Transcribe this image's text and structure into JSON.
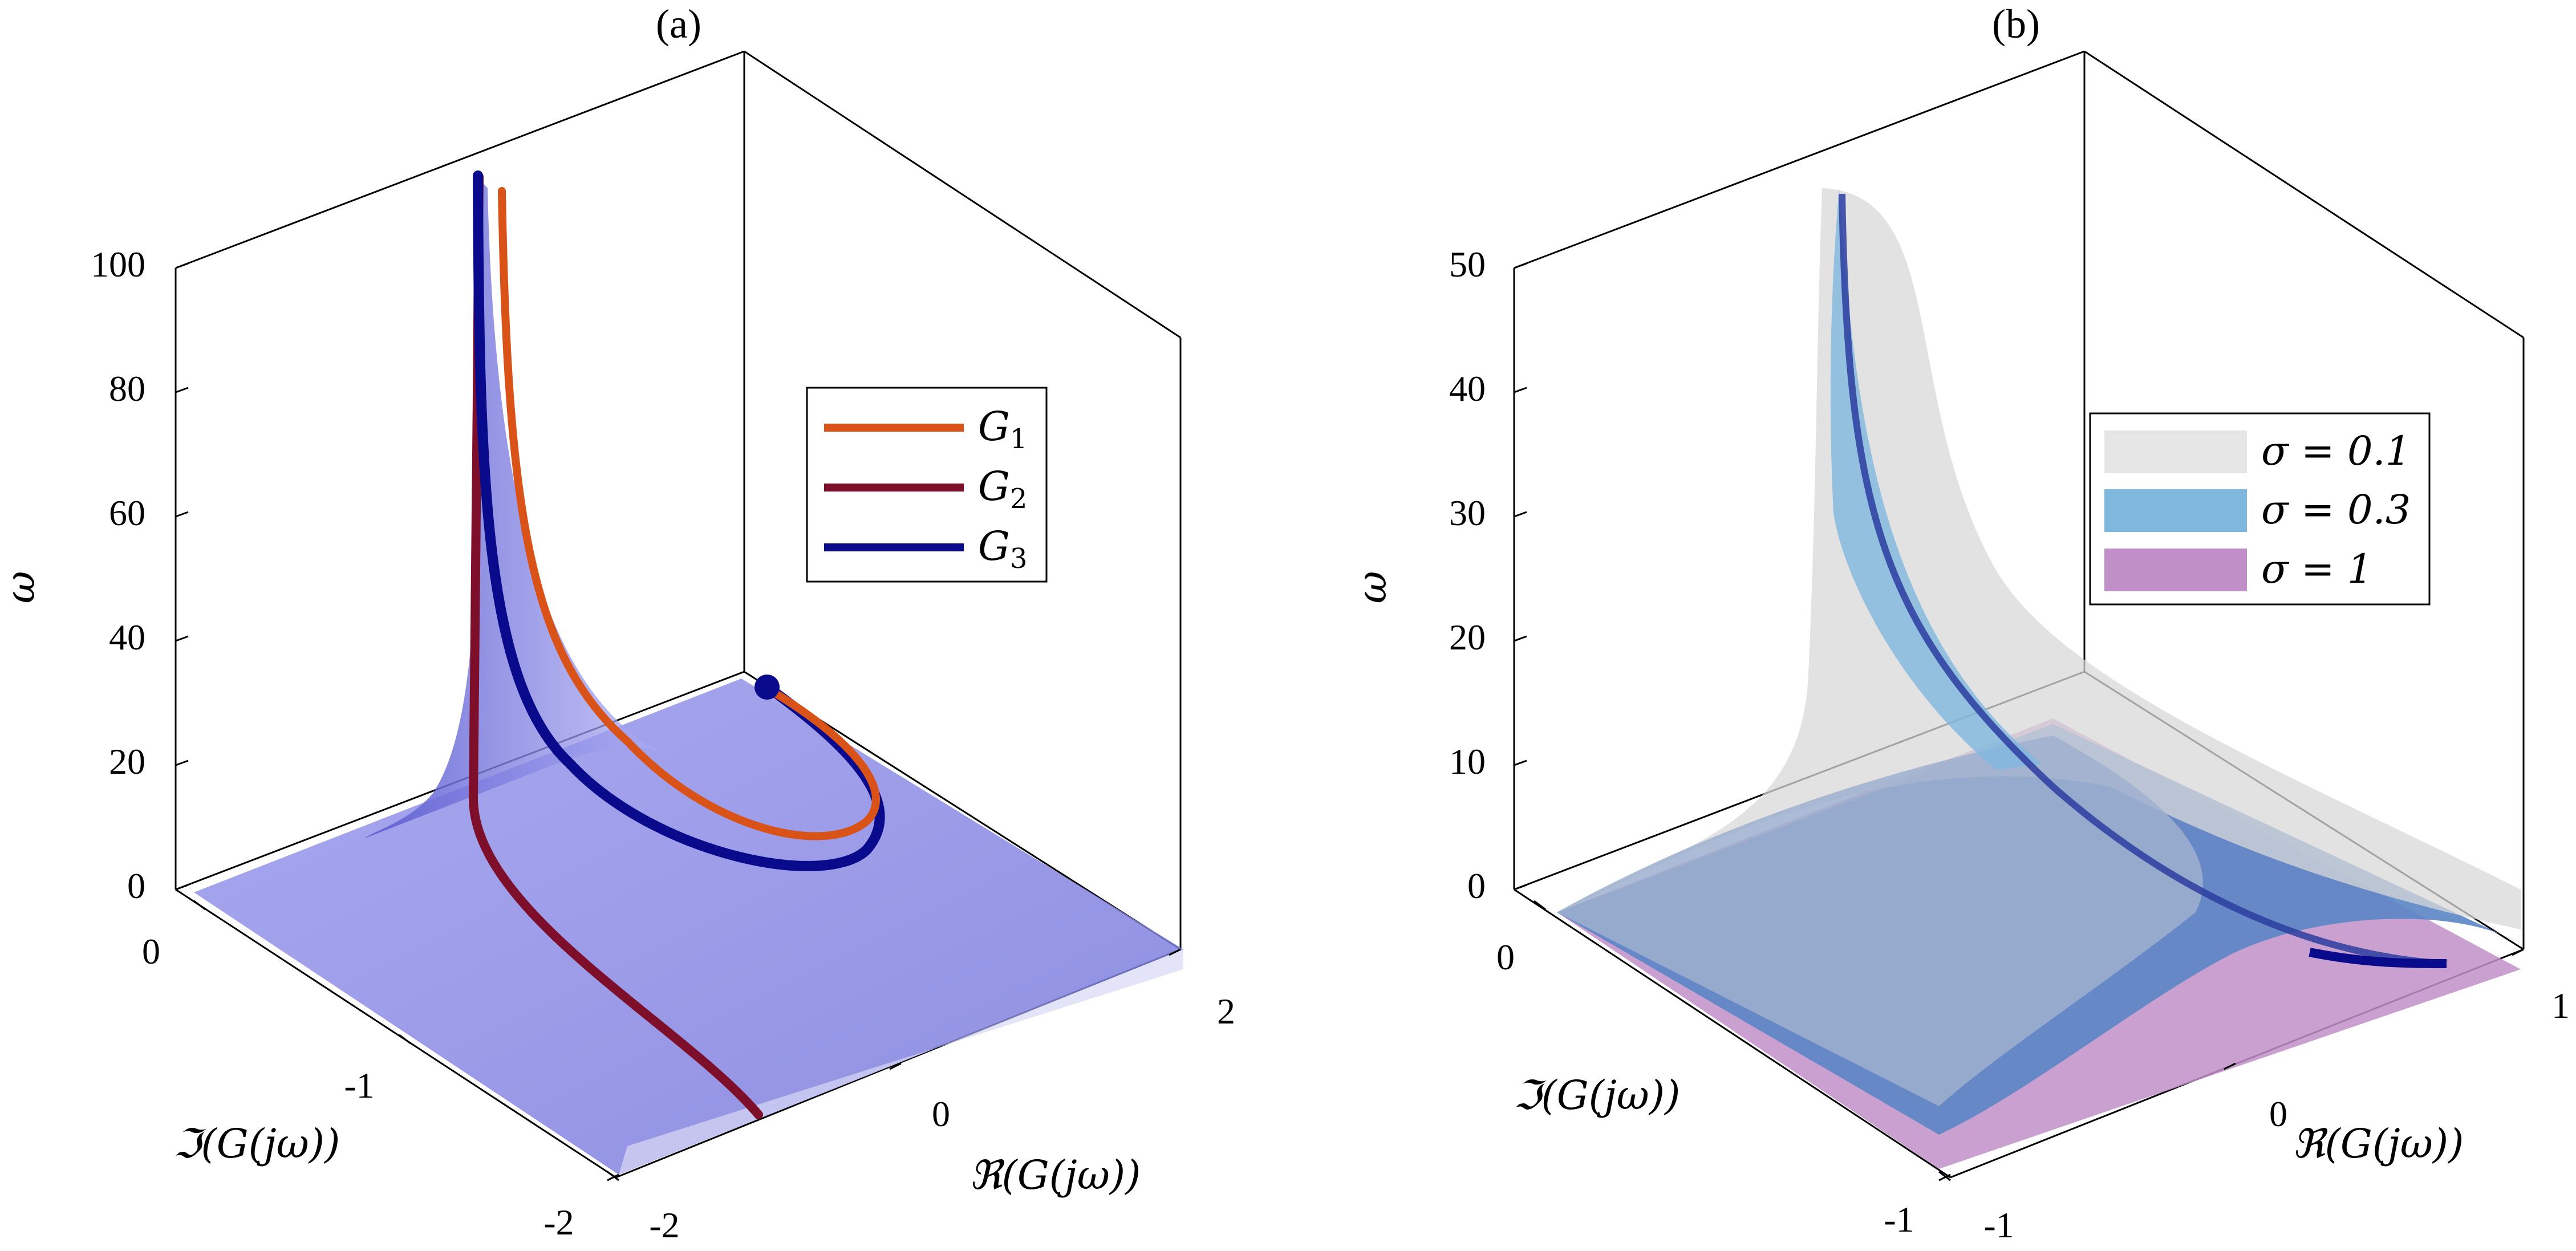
{
  "chart_data": [
    {
      "type": "line",
      "subtype": "3d-nyquist",
      "title": "(a)",
      "xlabel": "ℜ(G(jω))",
      "ylabel": "ℑ(G(jω))",
      "zlabel": "ω",
      "xticks": [
        "-2",
        "0",
        "2"
      ],
      "yticks": [
        "-2",
        "-1",
        "0"
      ],
      "zticks": [
        "0",
        "20",
        "40",
        "60",
        "80",
        "100"
      ],
      "zlim": [
        0,
        100
      ],
      "legend_position": "right",
      "series": [
        {
          "name": "G",
          "sub": "1",
          "color": "#D95319"
        },
        {
          "name": "G",
          "sub": "2",
          "color": "#7E0F2A"
        },
        {
          "name": "G",
          "sub": "3",
          "color": "#0A0A8C"
        }
      ],
      "surface_color": "#8A8AE6"
    },
    {
      "type": "line",
      "subtype": "3d-nyquist",
      "title": "(b)",
      "xlabel": "ℜ(G(jω))",
      "ylabel": "ℑ(G(jω))",
      "zlabel": "ω",
      "xticks": [
        "-1",
        "0",
        "1"
      ],
      "yticks": [
        "-1",
        "0"
      ],
      "zticks": [
        "0",
        "10",
        "20",
        "30",
        "40",
        "50"
      ],
      "zlim": [
        0,
        50
      ],
      "legend_position": "right",
      "series": [
        {
          "name": "σ = 0.1",
          "color": "#D9D9D9"
        },
        {
          "name": "σ = 0.3",
          "color": "#7FB8DE"
        },
        {
          "name": "σ = 1",
          "color": "#C08FC8"
        }
      ]
    }
  ]
}
